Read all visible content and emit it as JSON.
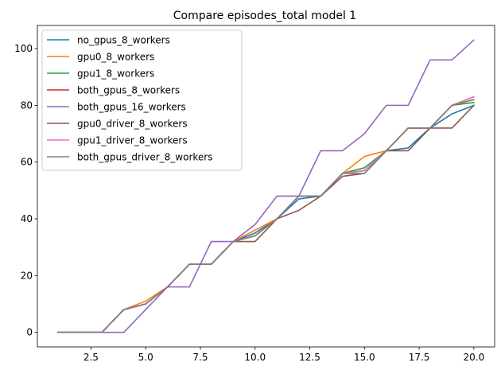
{
  "chart_data": {
    "type": "line",
    "title": "Compare episodes_total model 1",
    "xlabel": "",
    "ylabel": "",
    "xlim": [
      0.05,
      20.95
    ],
    "ylim": [
      -5.15,
      108.15
    ],
    "xticks": [
      2.5,
      5.0,
      7.5,
      10.0,
      12.5,
      15.0,
      17.5,
      20.0
    ],
    "xtick_labels": [
      "2.5",
      "5.0",
      "7.5",
      "10.0",
      "12.5",
      "15.0",
      "17.5",
      "20.0"
    ],
    "yticks": [
      0,
      20,
      40,
      60,
      80,
      100
    ],
    "ytick_labels": [
      "0",
      "20",
      "40",
      "60",
      "80",
      "100"
    ],
    "grid": false,
    "legend_position": "top-left",
    "x": [
      1,
      2,
      3,
      4,
      5,
      6,
      7,
      8,
      9,
      10,
      11,
      12,
      13,
      14,
      15,
      16,
      17,
      18,
      19,
      20
    ],
    "series": [
      {
        "name": "no_gpus_8_workers",
        "color": "#1f77b4",
        "values": [
          0,
          0,
          0,
          8,
          10,
          16,
          24,
          24,
          32,
          35,
          40,
          47,
          48,
          56,
          57,
          64,
          65,
          72,
          77,
          80
        ]
      },
      {
        "name": "gpu0_8_workers",
        "color": "#ff7f0e",
        "values": [
          0,
          0,
          0,
          8,
          11,
          16,
          24,
          24,
          32,
          36,
          40,
          48,
          48,
          56,
          62,
          64,
          72,
          72,
          80,
          82
        ]
      },
      {
        "name": "gpu1_8_workers",
        "color": "#2ca02c",
        "values": [
          0,
          0,
          0,
          8,
          10,
          16,
          24,
          24,
          32,
          34,
          40,
          48,
          48,
          56,
          58,
          64,
          72,
          72,
          80,
          81
        ]
      },
      {
        "name": "both_gpus_8_workers",
        "color": "#d62728",
        "values": [
          0,
          0,
          0,
          8,
          10,
          16,
          24,
          24,
          32,
          34,
          40,
          48,
          48,
          56,
          57,
          64,
          72,
          72,
          80,
          83
        ]
      },
      {
        "name": "both_gpus_16_workers",
        "color": "#9467bd",
        "values": [
          0,
          0,
          0,
          0,
          8,
          16,
          16,
          32,
          32,
          38,
          48,
          48,
          64,
          64,
          70,
          80,
          80,
          96,
          96,
          103
        ]
      },
      {
        "name": "gpu0_driver_8_workers",
        "color": "#8c564b",
        "values": [
          0,
          0,
          0,
          8,
          10,
          16,
          24,
          24,
          32,
          32,
          40,
          43,
          48,
          55,
          56,
          64,
          64,
          72,
          72,
          80
        ]
      },
      {
        "name": "gpu1_driver_8_workers",
        "color": "#e377c2",
        "values": [
          0,
          0,
          0,
          8,
          10,
          16,
          24,
          24,
          32,
          34,
          40,
          48,
          48,
          56,
          57,
          64,
          72,
          72,
          80,
          83
        ]
      },
      {
        "name": "both_gpus_driver_8_workers",
        "color": "#7f7f7f",
        "values": [
          0,
          0,
          0,
          8,
          10,
          16,
          24,
          24,
          32,
          34,
          40,
          48,
          48,
          56,
          56,
          64,
          72,
          72,
          80,
          82
        ]
      }
    ]
  }
}
